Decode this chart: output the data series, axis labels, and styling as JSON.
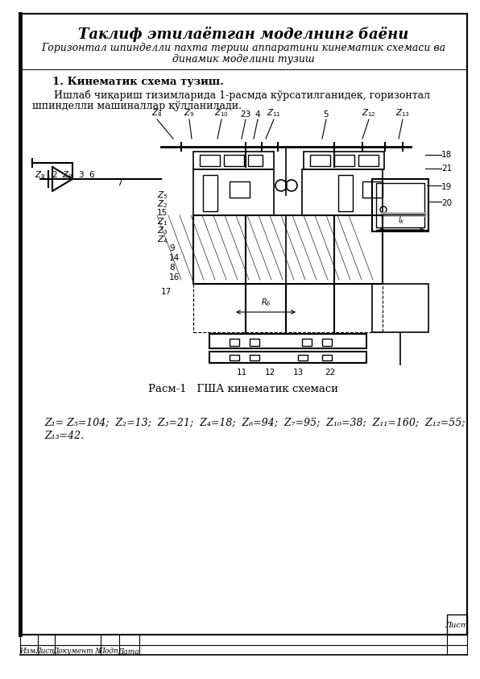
{
  "title": "Таклиф этилаётган моделнинг баёни",
  "subtitle1": "Горизонтал шпинделли пахта териш аппаратини кинематик схемаси ва",
  "subtitle2": "динамик моделини тузиш",
  "section": "1. Кинематик схема тузиш.",
  "body1": "   Ишлаб чиқариш тизимларида 1-расмда кўрсатилганидек, горизонтал",
  "body2": "шпинделли машиналлар қўлланилади.",
  "caption": "Расм-1   ГША кинематик схемаси",
  "formula1": "Z₁= Z₅=104;  Z₂=13;  Z₃=21;  Z₄=18;  Z₆=94;  Z₇=95;  Z₁₀=38;  Z₁₁=160;  Z₁₂=55;",
  "formula2": "Z₁₃=42.",
  "stamp_izm": "Изм.",
  "stamp_list": "Лист",
  "stamp_doc": "Документ №",
  "stamp_podp": "Подп.",
  "stamp_data": "Дата",
  "stamp_list2": "Лист",
  "bg": "#ffffff",
  "border": "#000000"
}
